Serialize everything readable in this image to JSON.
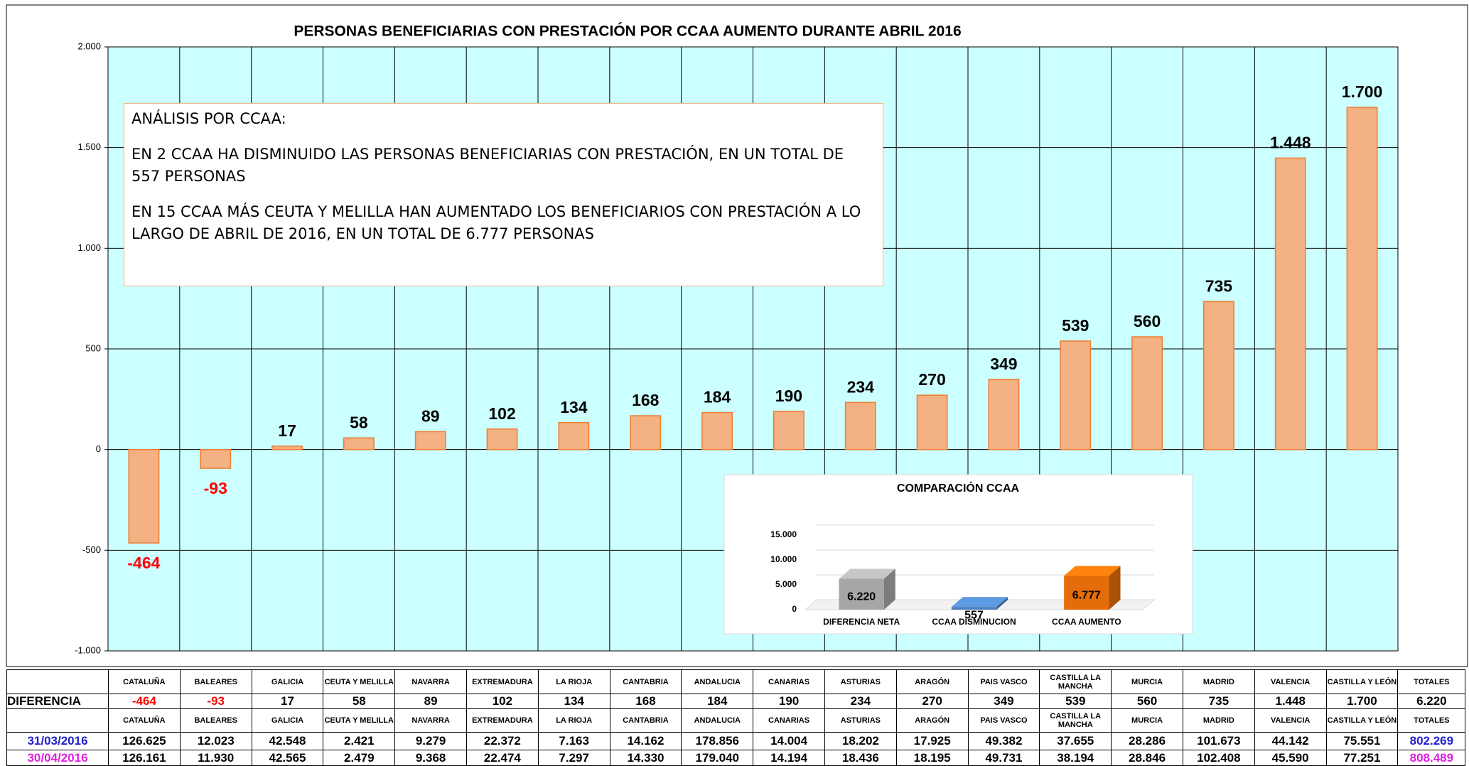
{
  "chart_data": [
    {
      "type": "bar",
      "title": "PERSONAS BENEFICIARIAS CON PRESTACIÓN POR CCAA AUMENTO DURANTE ABRIL 2016",
      "values": [
        -464,
        -93,
        17,
        58,
        89,
        102,
        134,
        168,
        184,
        190,
        234,
        270,
        349,
        539,
        560,
        735,
        1448,
        1700
      ],
      "value_labels": [
        "-464",
        "-93",
        "17",
        "58",
        "89",
        "102",
        "134",
        "168",
        "184",
        "190",
        "234",
        "270",
        "349",
        "539",
        "560",
        "735",
        "1.448",
        "1.700"
      ],
      "color": "#f4b183",
      "edge_color": "#ed7d31",
      "negative_label_color": "#ff0000",
      "ylim": [
        -1000,
        2000
      ],
      "yticks": [
        {
          "value": -1000,
          "label": "-1.000"
        },
        -500,
        0,
        500,
        {
          "value": 1000,
          "label": "1.000"
        },
        {
          "value": 1500,
          "label": "1.500"
        },
        {
          "value": 2000,
          "label": "2.000"
        }
      ],
      "grid": true,
      "annotations": [
        "ANÁLISIS POR CCAA:",
        "EN 2 CCAA HA DISMINUIDO LAS PERSONAS BENEFICIARIAS CON PRESTACIÓN, EN UN TOTAL DE 557 PERSONAS",
        "EN 15 CCAA MÁS CEUTA Y MELILLA HAN AUMENTADO LOS BENEFICIARIOS CON PRESTACIÓN A LO LARGO DE ABRIL DE 2016, EN UN TOTAL DE  6.777 PERSONAS"
      ]
    },
    {
      "type": "bar3d",
      "title": "COMPARACIÓN CCAA",
      "categories": [
        "DIFERENCIA NETA",
        "CCAA DISMINUCION",
        "CCAA AUMENTO"
      ],
      "values": [
        6220,
        557,
        6777
      ],
      "value_labels": [
        "6.220",
        "557",
        "6.777"
      ],
      "colors": [
        "#a6a6a6",
        "#4f81bd",
        "#e46c0a"
      ],
      "ylim": [
        0,
        15000
      ],
      "yticks": [
        0,
        {
          "value": 5000,
          "label": "5.000"
        },
        {
          "value": 10000,
          "label": "10.000"
        },
        {
          "value": 15000,
          "label": "15.000"
        }
      ],
      "grid": true
    }
  ],
  "table": {
    "header": [
      "CATALUÑA",
      "BALEARES",
      "GALICIA",
      "CEUTA Y MELILLA",
      "NAVARRA",
      "EXTREMADURA",
      "LA RIOJA",
      "CANTABRIA",
      "ANDALUCIA",
      "CANARIAS",
      "ASTURIAS",
      "ARAGÓN",
      "PAIS VASCO",
      "CASTILLA LA MANCHA",
      "MURCIA",
      "MADRID",
      "VALENCIA",
      "CASTILLA Y LEÓN",
      "TOTALES"
    ],
    "rows": [
      {
        "label": "DIFERENCIA",
        "color": "#000000",
        "cells": [
          "-464",
          "-93",
          "17",
          "58",
          "89",
          "102",
          "134",
          "168",
          "184",
          "190",
          "234",
          "270",
          "349",
          "539",
          "560",
          "735",
          "1.448",
          "1.700",
          "6.220"
        ]
      },
      {
        "label": "31/03/2016",
        "color": "#1f1fd0",
        "cells": [
          "126.625",
          "12.023",
          "42.548",
          "2.421",
          "9.279",
          "22.372",
          "7.163",
          "14.162",
          "178.856",
          "14.004",
          "18.202",
          "17.925",
          "49.382",
          "37.655",
          "28.286",
          "101.673",
          "44.142",
          "75.551",
          "802.269"
        ]
      },
      {
        "label": "30/04/2016",
        "color": "#e020e0",
        "cells": [
          "126.161",
          "11.930",
          "42.565",
          "2.479",
          "9.368",
          "22.474",
          "7.297",
          "14.330",
          "179.040",
          "14.194",
          "18.436",
          "18.195",
          "49.731",
          "38.194",
          "28.846",
          "102.408",
          "45.590",
          "77.251",
          "808.489"
        ]
      }
    ]
  }
}
